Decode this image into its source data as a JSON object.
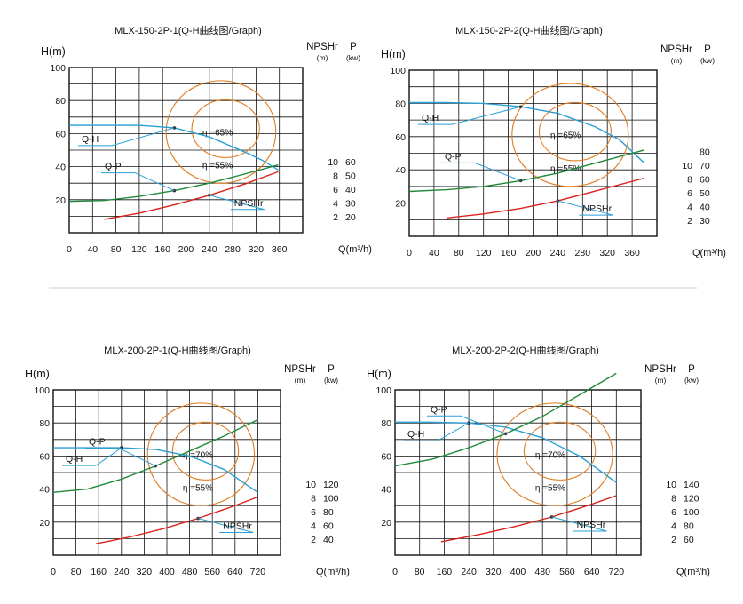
{
  "chart_data": [
    {
      "type": "line",
      "title": "MLX-150-2P-1(Q-H曲线图/Graph)",
      "ylabel": "H(m)",
      "npsh_label": "NPSHr",
      "npsh_unit": "(m)",
      "power_label": "P",
      "power_unit": "(kw)",
      "xlabel": "Q(m³/h)",
      "x_ticks": [
        "0",
        "40",
        "80",
        "120",
        "160",
        "200",
        "240",
        "280",
        "320",
        "360"
      ],
      "h_ticks": [
        "100",
        "80",
        "60",
        "40",
        "20"
      ],
      "npsh_ticks": [
        "10",
        "8",
        "6",
        "4",
        "2"
      ],
      "power_ticks": [
        "60",
        "50",
        "40",
        "30",
        "20"
      ],
      "xlim": [
        0,
        400
      ],
      "ylim": [
        0,
        100
      ],
      "grid": true,
      "series": [
        {
          "name": "Q-H",
          "color": "#2a9fd6",
          "x": [
            0,
            60,
            120,
            180,
            240,
            300,
            330,
            358
          ],
          "values": [
            65,
            65,
            65,
            63.5,
            58,
            49,
            44,
            38
          ]
        },
        {
          "name": "Q-P",
          "color": "#1f8a3a",
          "x": [
            0,
            60,
            120,
            180,
            240,
            300,
            358
          ],
          "values": [
            19,
            19.5,
            22,
            25.5,
            30,
            35.5,
            41
          ]
        },
        {
          "name": "NPSHr",
          "color": "#d9231c",
          "x": [
            60,
            120,
            180,
            240,
            300,
            358
          ],
          "values": [
            1.5,
            2.4,
            3.6,
            5.0,
            6.6,
            8.4
          ]
        }
      ],
      "efficiency_labels": [
        "η =65%",
        "η =55%"
      ],
      "efficiency_color": "#e07b20"
    },
    {
      "type": "line",
      "title": "MLX-150-2P-2(Q-H曲线图/Graph)",
      "ylabel": "H(m)",
      "npsh_label": "NPSHr",
      "npsh_unit": "(m)",
      "power_label": "P",
      "power_unit": "(kw)",
      "xlabel": "Q(m³/h)",
      "x_ticks": [
        "0",
        "40",
        "80",
        "120",
        "160",
        "200",
        "240",
        "280",
        "320",
        "360"
      ],
      "h_ticks": [
        "100",
        "80",
        "60",
        "40",
        "20"
      ],
      "npsh_ticks": [
        "10",
        "8",
        "6",
        "4",
        "2"
      ],
      "power_ticks": [
        "80",
        "70",
        "60",
        "50",
        "40",
        "30"
      ],
      "xlim": [
        0,
        400
      ],
      "ylim": [
        0,
        100
      ],
      "grid": true,
      "series": [
        {
          "name": "Q-H",
          "color": "#2a9fd6",
          "x": [
            0,
            60,
            120,
            180,
            240,
            300,
            340,
            380
          ],
          "values": [
            80.5,
            80.5,
            80,
            78,
            74,
            66,
            58,
            44
          ]
        },
        {
          "name": "Q-P",
          "color": "#1f8a3a",
          "x": [
            0,
            60,
            120,
            180,
            240,
            300,
            380
          ],
          "values": [
            27,
            28,
            30,
            33.5,
            38,
            44,
            52
          ]
        },
        {
          "name": "NPSHr",
          "color": "#d9231c",
          "x": [
            60,
            120,
            180,
            240,
            300,
            380
          ],
          "values": [
            2.2,
            2.8,
            3.6,
            4.7,
            6.1,
            8.0
          ]
        }
      ],
      "efficiency_labels": [
        "η =65%",
        "η =55%"
      ],
      "efficiency_color": "#e07b20"
    },
    {
      "type": "line",
      "title": "MLX-200-2P-1(Q-H曲线图/Graph)",
      "ylabel": "H(m)",
      "npsh_label": "NPSHr",
      "npsh_unit": "(m)",
      "power_label": "P",
      "power_unit": "(kw)",
      "xlabel": "Q(m³/h)",
      "x_ticks": [
        "0",
        "80",
        "160",
        "240",
        "320",
        "400",
        "480",
        "560",
        "640",
        "720"
      ],
      "h_ticks": [
        "100",
        "80",
        "60",
        "40",
        "20"
      ],
      "npsh_ticks": [
        "10",
        "8",
        "6",
        "4",
        "2"
      ],
      "power_ticks": [
        "120",
        "100",
        "80",
        "60",
        "40"
      ],
      "xlim": [
        0,
        800
      ],
      "ylim": [
        0,
        100
      ],
      "grid": true,
      "series": [
        {
          "name": "Q-H",
          "color": "#2a9fd6",
          "x": [
            0,
            120,
            240,
            360,
            480,
            600,
            720
          ],
          "values": [
            65,
            65,
            65,
            64,
            60,
            52,
            38
          ]
        },
        {
          "name": "Q-P",
          "color": "#1f8a3a",
          "x": [
            0,
            120,
            240,
            360,
            480,
            600,
            720
          ],
          "values": [
            38,
            40,
            46,
            54,
            63,
            72,
            82
          ]
        },
        {
          "name": "NPSHr",
          "color": "#d9231c",
          "x": [
            150,
            270,
            390,
            510,
            630,
            720
          ],
          "values": [
            1.2,
            2.2,
            3.4,
            4.9,
            6.6,
            8.0
          ]
        }
      ],
      "efficiency_labels": [
        "η =70%",
        "η =55%"
      ],
      "efficiency_color": "#e07b20"
    },
    {
      "type": "line",
      "title": "MLX-200-2P-2(Q-H曲线图/Graph)",
      "ylabel": "H(m)",
      "npsh_label": "NPSHr",
      "npsh_unit": "(m)",
      "power_label": "P",
      "power_unit": "(kw)",
      "xlabel": "Q(m³/h)",
      "x_ticks": [
        "0",
        "80",
        "160",
        "240",
        "320",
        "400",
        "480",
        "560",
        "640",
        "720"
      ],
      "h_ticks": [
        "100",
        "80",
        "60",
        "40",
        "20"
      ],
      "npsh_ticks": [
        "10",
        "8",
        "6",
        "4",
        "2"
      ],
      "power_ticks": [
        "140",
        "120",
        "100",
        "80",
        "60"
      ],
      "xlim": [
        0,
        800
      ],
      "ylim": [
        0,
        100
      ],
      "grid": true,
      "series": [
        {
          "name": "Q-H",
          "color": "#2a9fd6",
          "x": [
            0,
            120,
            240,
            360,
            480,
            600,
            720
          ],
          "values": [
            80.5,
            80.5,
            80,
            77.5,
            71,
            60,
            44
          ]
        },
        {
          "name": "Q-P",
          "color": "#1f8a3a",
          "x": [
            0,
            120,
            240,
            360,
            480,
            600,
            720
          ],
          "values": [
            54,
            58,
            65,
            73.5,
            84,
            97,
            110
          ]
        },
        {
          "name": "NPSHr",
          "color": "#d9231c",
          "x": [
            150,
            270,
            390,
            510,
            630,
            720
          ],
          "values": [
            1.5,
            2.5,
            3.7,
            5.1,
            6.8,
            8.2
          ]
        }
      ],
      "efficiency_labels": [
        "η =70%",
        "η =55%"
      ],
      "efficiency_color": "#e07b20"
    }
  ],
  "divider_color": "#cccccc"
}
